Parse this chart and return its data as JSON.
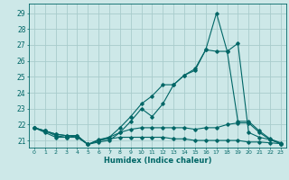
{
  "background_color": "#cde8e8",
  "grid_color": "#a8cccc",
  "line_color": "#006666",
  "xlabel": "Humidex (Indice chaleur)",
  "ylabel_ticks": [
    21,
    22,
    23,
    24,
    25,
    26,
    27,
    28,
    29
  ],
  "xlim": [
    -0.5,
    23.5
  ],
  "ylim": [
    20.55,
    29.6
  ],
  "x_ticks": [
    0,
    1,
    2,
    3,
    4,
    5,
    6,
    7,
    8,
    9,
    10,
    11,
    12,
    13,
    14,
    15,
    16,
    17,
    18,
    19,
    20,
    21,
    22,
    23
  ],
  "series": [
    {
      "x": [
        0,
        1,
        2,
        3,
        4,
        5,
        6,
        7,
        8,
        9,
        10,
        11,
        12,
        13,
        14,
        15,
        16,
        17,
        18,
        19,
        20,
        21,
        22,
        23
      ],
      "y": [
        21.8,
        21.6,
        21.3,
        21.2,
        21.3,
        20.75,
        21.0,
        21.1,
        21.2,
        21.2,
        21.2,
        21.2,
        21.2,
        21.1,
        21.1,
        21.0,
        21.0,
        21.0,
        21.0,
        21.0,
        20.9,
        20.9,
        20.85,
        20.8
      ]
    },
    {
      "x": [
        0,
        1,
        2,
        3,
        4,
        5,
        6,
        7,
        8,
        9,
        10,
        11,
        12,
        13,
        14,
        15,
        16,
        17,
        18,
        19,
        20,
        21,
        22,
        23
      ],
      "y": [
        21.8,
        21.5,
        21.2,
        21.2,
        21.2,
        20.75,
        21.05,
        21.2,
        21.5,
        21.7,
        21.8,
        21.8,
        21.8,
        21.8,
        21.8,
        21.7,
        21.8,
        21.8,
        22.0,
        22.1,
        22.1,
        21.5,
        21.05,
        20.8
      ]
    },
    {
      "x": [
        0,
        1,
        2,
        3,
        4,
        5,
        6,
        7,
        8,
        9,
        10,
        11,
        12,
        13,
        14,
        15,
        16,
        17,
        18,
        19,
        20,
        21,
        22,
        23
      ],
      "y": [
        21.8,
        21.6,
        21.4,
        21.3,
        21.3,
        20.75,
        20.9,
        21.0,
        21.5,
        22.2,
        23.0,
        22.5,
        23.3,
        24.5,
        25.1,
        25.4,
        26.7,
        26.6,
        26.6,
        22.2,
        22.2,
        21.6,
        21.1,
        20.85
      ]
    },
    {
      "x": [
        0,
        1,
        2,
        3,
        4,
        5,
        6,
        7,
        8,
        9,
        10,
        11,
        12,
        13,
        14,
        15,
        16,
        17,
        18,
        19,
        20,
        21,
        22,
        23
      ],
      "y": [
        21.8,
        21.6,
        21.4,
        21.3,
        21.3,
        20.75,
        21.0,
        21.2,
        21.8,
        22.5,
        23.3,
        23.8,
        24.5,
        24.5,
        25.1,
        25.5,
        26.7,
        29.0,
        26.6,
        27.1,
        21.5,
        21.2,
        21.05,
        20.8
      ]
    }
  ]
}
